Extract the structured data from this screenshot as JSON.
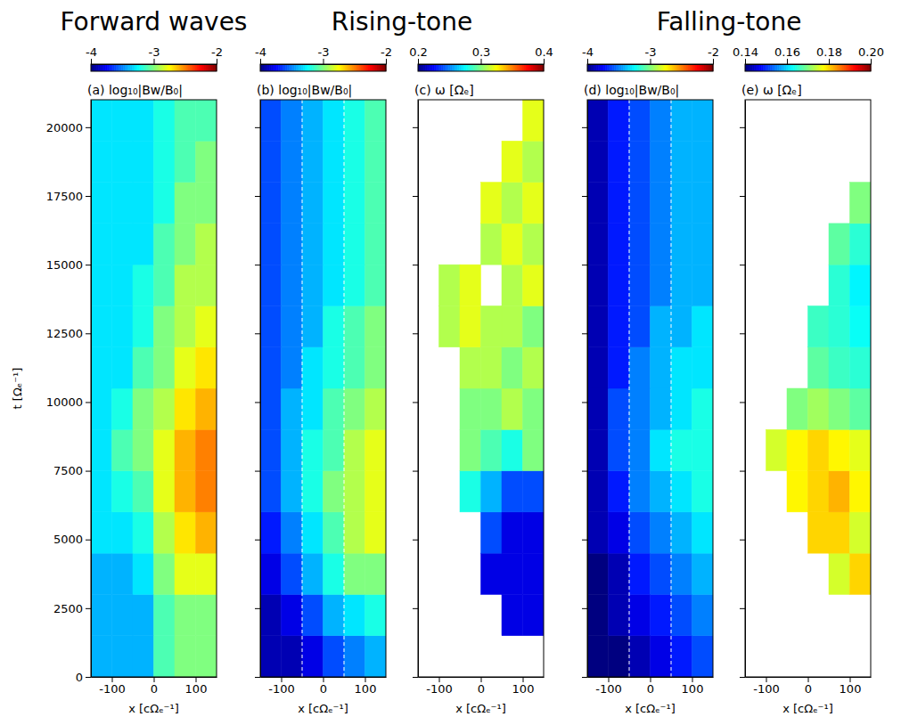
{
  "titles": [
    "Forward waves",
    "Rising-tone",
    "Falling-tone"
  ],
  "chart_data": [
    {
      "type": "heatmap",
      "title": "(a) log₁₀|Bw/B₀|",
      "xlabel": "x  [cΩₑ⁻¹]",
      "ylabel": "t  [Ωₑ⁻¹]",
      "xlim": [
        -150,
        150
      ],
      "xticks": [
        -100,
        0,
        100
      ],
      "ylim": [
        0,
        21000
      ],
      "yticks": [
        0,
        2500,
        5000,
        7500,
        10000,
        12500,
        15000,
        17500,
        20000
      ],
      "x": [
        -150,
        -100,
        -50,
        0,
        50,
        100,
        150
      ],
      "y": [
        0,
        1500,
        3000,
        4500,
        6000,
        7500,
        9000,
        10500,
        12000,
        13500,
        15000,
        16500,
        18000,
        19500,
        21000
      ],
      "cells": [
        [
          -3.4,
          -3.4,
          -3.4,
          -3.1,
          -3.0,
          -3.0
        ],
        [
          -3.4,
          -3.4,
          -3.4,
          -3.1,
          -3.0,
          -3.0
        ],
        [
          -3.4,
          -3.4,
          -3.3,
          -3.0,
          -2.8,
          -2.8
        ],
        [
          -3.3,
          -3.3,
          -3.2,
          -2.9,
          -2.7,
          -2.6
        ],
        [
          -3.3,
          -3.2,
          -3.1,
          -2.8,
          -2.6,
          -2.5
        ],
        [
          -3.3,
          -3.1,
          -3.0,
          -2.8,
          -2.6,
          -2.5
        ],
        [
          -3.3,
          -3.2,
          -3.0,
          -2.9,
          -2.7,
          -2.6
        ],
        [
          -3.3,
          -3.3,
          -3.1,
          -3.0,
          -2.8,
          -2.7
        ],
        [
          -3.3,
          -3.3,
          -3.2,
          -3.0,
          -2.9,
          -2.8
        ],
        [
          -3.3,
          -3.3,
          -3.2,
          -3.1,
          -2.9,
          -2.9
        ],
        [
          -3.3,
          -3.3,
          -3.3,
          -3.1,
          -3.0,
          -2.9
        ],
        [
          -3.3,
          -3.3,
          -3.3,
          -3.2,
          -3.0,
          -3.0
        ],
        [
          -3.3,
          -3.3,
          -3.3,
          -3.2,
          -3.1,
          -3.0
        ],
        [
          -3.3,
          -3.3,
          -3.3,
          -3.2,
          -3.1,
          -3.1
        ]
      ],
      "colorbar": {
        "range": [
          -4,
          -2
        ],
        "ticks": [
          -4,
          -3,
          -2
        ]
      }
    },
    {
      "type": "heatmap",
      "title": "(b) log₁₀|Bw/B₀|",
      "xlabel": "x  [cΩₑ⁻¹]",
      "tick_labels": "x",
      "xlim": [
        -150,
        150
      ],
      "xticks": [
        -100,
        0,
        100
      ],
      "ylim": [
        0,
        21000
      ],
      "yticks": [
        0,
        2500,
        5000,
        7500,
        10000,
        12500,
        15000,
        17500,
        20000
      ],
      "x": [
        -150,
        -100,
        -50,
        0,
        50,
        100,
        150
      ],
      "y": [
        0,
        1500,
        3000,
        4500,
        6000,
        7500,
        9000,
        10500,
        12000,
        13500,
        15000,
        16500,
        18000,
        19500,
        21000
      ],
      "cells": [
        [
          -3.9,
          -3.9,
          -3.8,
          -3.6,
          -3.5,
          -3.4
        ],
        [
          -3.9,
          -3.8,
          -3.6,
          -3.4,
          -3.3,
          -3.2
        ],
        [
          -3.8,
          -3.6,
          -3.4,
          -3.2,
          -3.0,
          -3.0
        ],
        [
          -3.7,
          -3.5,
          -3.3,
          -3.1,
          -2.9,
          -2.8
        ],
        [
          -3.6,
          -3.4,
          -3.2,
          -3.0,
          -2.9,
          -2.8
        ],
        [
          -3.6,
          -3.4,
          -3.2,
          -3.1,
          -2.9,
          -2.8
        ],
        [
          -3.6,
          -3.4,
          -3.3,
          -3.1,
          -3.0,
          -2.9
        ],
        [
          -3.6,
          -3.5,
          -3.3,
          -3.2,
          -3.1,
          -3.0
        ],
        [
          -3.6,
          -3.5,
          -3.4,
          -3.2,
          -3.1,
          -3.0
        ],
        [
          -3.6,
          -3.5,
          -3.4,
          -3.3,
          -3.2,
          -3.1
        ],
        [
          -3.6,
          -3.5,
          -3.4,
          -3.3,
          -3.2,
          -3.1
        ],
        [
          -3.6,
          -3.5,
          -3.4,
          -3.3,
          -3.2,
          -3.1
        ],
        [
          -3.6,
          -3.5,
          -3.4,
          -3.3,
          -3.2,
          -3.1
        ],
        [
          -3.6,
          -3.5,
          -3.4,
          -3.3,
          -3.2,
          -3.1
        ]
      ],
      "vlines": [
        -50,
        50
      ],
      "colorbar": {
        "range": [
          -4,
          -2
        ],
        "ticks": [
          -4,
          -3,
          -2
        ]
      }
    },
    {
      "type": "heatmap",
      "title": "(c) ω [Ωₑ]",
      "xlabel": "x  [cΩₑ⁻¹]",
      "tick_labels": "x",
      "xlim": [
        -150,
        150
      ],
      "xticks": [
        -100,
        0,
        100
      ],
      "ylim": [
        0,
        21000
      ],
      "yticks": [
        0,
        2500,
        5000,
        7500,
        10000,
        12500,
        15000,
        17500,
        20000
      ],
      "x": [
        -150,
        -100,
        -50,
        0,
        50,
        100,
        150
      ],
      "y": [
        0,
        1500,
        3000,
        4500,
        6000,
        7500,
        9000,
        10500,
        12000,
        13500,
        15000,
        16500,
        18000,
        19500,
        21000
      ],
      "cells": [
        [
          null,
          null,
          null,
          null,
          null,
          null
        ],
        [
          null,
          null,
          null,
          null,
          0.22,
          0.22
        ],
        [
          null,
          null,
          null,
          0.22,
          0.22,
          0.22
        ],
        [
          null,
          null,
          null,
          0.24,
          0.22,
          0.22
        ],
        [
          null,
          null,
          0.28,
          0.26,
          0.24,
          0.24
        ],
        [
          null,
          null,
          0.3,
          0.29,
          0.28,
          0.3
        ],
        [
          null,
          null,
          0.3,
          0.3,
          0.31,
          0.3
        ],
        [
          null,
          null,
          0.31,
          0.31,
          0.3,
          0.31
        ],
        [
          null,
          0.31,
          0.32,
          0.31,
          0.31,
          0.3
        ],
        [
          null,
          0.31,
          0.32,
          null,
          0.31,
          0.32
        ],
        [
          null,
          null,
          null,
          0.31,
          0.32,
          0.31
        ],
        [
          null,
          null,
          null,
          0.32,
          0.31,
          0.32
        ],
        [
          null,
          null,
          null,
          null,
          0.32,
          0.31
        ],
        [
          null,
          null,
          null,
          null,
          null,
          0.32
        ]
      ],
      "colorbar": {
        "range": [
          0.2,
          0.4
        ],
        "ticks": [
          0.2,
          0.3,
          0.4
        ]
      }
    },
    {
      "type": "heatmap",
      "title": "(d) log₁₀|Bw/B₀|",
      "xlabel": "x  [cΩₑ⁻¹]",
      "tick_labels": "x",
      "xlim": [
        -150,
        150
      ],
      "xticks": [
        -100,
        0,
        100
      ],
      "ylim": [
        0,
        21000
      ],
      "yticks": [
        0,
        2500,
        5000,
        7500,
        10000,
        12500,
        15000,
        17500,
        20000
      ],
      "x": [
        -150,
        -100,
        -50,
        0,
        50,
        100,
        150
      ],
      "y": [
        0,
        1500,
        3000,
        4500,
        6000,
        7500,
        9000,
        10500,
        12000,
        13500,
        15000,
        16500,
        18000,
        19500,
        21000
      ],
      "cells": [
        [
          -4.0,
          -4.0,
          -3.9,
          -3.8,
          -3.7,
          -3.6
        ],
        [
          -4.0,
          -3.9,
          -3.8,
          -3.7,
          -3.6,
          -3.5
        ],
        [
          -4.0,
          -3.9,
          -3.7,
          -3.6,
          -3.5,
          -3.4
        ],
        [
          -3.9,
          -3.8,
          -3.6,
          -3.5,
          -3.4,
          -3.3
        ],
        [
          -3.9,
          -3.7,
          -3.5,
          -3.4,
          -3.3,
          -3.2
        ],
        [
          -3.9,
          -3.6,
          -3.5,
          -3.3,
          -3.2,
          -3.2
        ],
        [
          -3.9,
          -3.6,
          -3.5,
          -3.4,
          -3.3,
          -3.2
        ],
        [
          -3.9,
          -3.7,
          -3.5,
          -3.4,
          -3.3,
          -3.3
        ],
        [
          -3.9,
          -3.7,
          -3.6,
          -3.4,
          -3.4,
          -3.3
        ],
        [
          -3.9,
          -3.7,
          -3.6,
          -3.5,
          -3.4,
          -3.4
        ],
        [
          -3.9,
          -3.7,
          -3.6,
          -3.5,
          -3.4,
          -3.4
        ],
        [
          -3.9,
          -3.7,
          -3.6,
          -3.5,
          -3.4,
          -3.4
        ],
        [
          -3.9,
          -3.7,
          -3.6,
          -3.5,
          -3.4,
          -3.4
        ],
        [
          -3.9,
          -3.7,
          -3.6,
          -3.5,
          -3.4,
          -3.4
        ]
      ],
      "vlines": [
        -50,
        50
      ],
      "colorbar": {
        "range": [
          -4,
          -2
        ],
        "ticks": [
          -4,
          -3,
          -2
        ]
      }
    },
    {
      "type": "heatmap",
      "title": "(e) ω [Ωₑ]",
      "xlabel": "x  [cΩₑ⁻¹]",
      "tick_labels": "x",
      "xlim": [
        -150,
        150
      ],
      "xticks": [
        -100,
        0,
        100
      ],
      "ylim": [
        0,
        21000
      ],
      "yticks": [
        0,
        2500,
        5000,
        7500,
        10000,
        12500,
        15000,
        17500,
        20000
      ],
      "x": [
        -150,
        -100,
        -50,
        0,
        50,
        100,
        150
      ],
      "y": [
        0,
        1500,
        3000,
        4500,
        6000,
        7500,
        9000,
        10500,
        12000,
        13500,
        15000,
        16500,
        18000,
        19500,
        21000
      ],
      "cells": [
        [
          null,
          null,
          null,
          null,
          null,
          null
        ],
        [
          null,
          null,
          null,
          null,
          null,
          null
        ],
        [
          null,
          null,
          null,
          null,
          0.175,
          0.18
        ],
        [
          null,
          null,
          null,
          0.18,
          0.18,
          0.175
        ],
        [
          null,
          null,
          0.178,
          0.18,
          0.182,
          0.178
        ],
        [
          null,
          0.175,
          0.178,
          0.18,
          0.178,
          0.176
        ],
        [
          null,
          null,
          0.17,
          0.172,
          0.17,
          0.168
        ],
        [
          null,
          null,
          null,
          0.168,
          0.166,
          0.165
        ],
        [
          null,
          null,
          null,
          0.166,
          0.165,
          0.163
        ],
        [
          null,
          null,
          null,
          null,
          0.165,
          0.162
        ],
        [
          null,
          null,
          null,
          null,
          0.168,
          0.165
        ],
        [
          null,
          null,
          null,
          null,
          null,
          0.17
        ],
        [
          null,
          null,
          null,
          null,
          null,
          null
        ],
        [
          null,
          null,
          null,
          null,
          null,
          null
        ]
      ],
      "colorbar": {
        "range": [
          0.14,
          0.2
        ],
        "ticks": [
          0.14,
          0.16,
          0.18,
          {
            "value": 0.2,
            "label": "0.20"
          }
        ]
      }
    }
  ]
}
